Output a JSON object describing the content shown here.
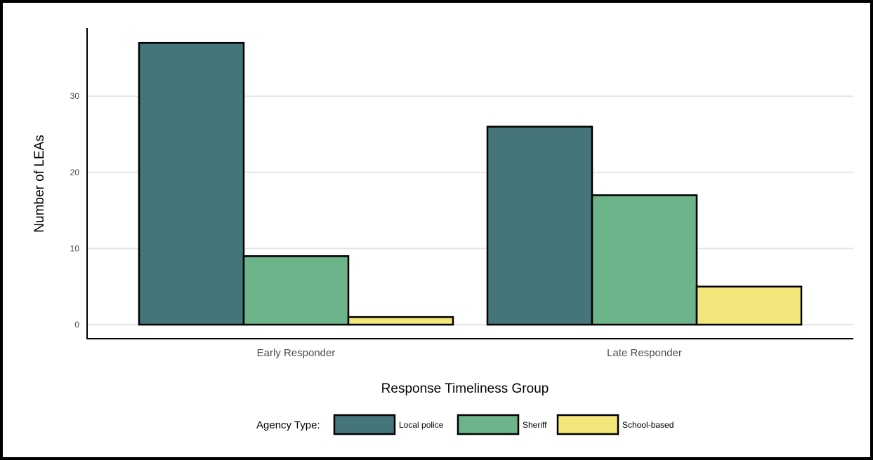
{
  "chart_data": {
    "type": "bar",
    "categories": [
      "Early Responder",
      "Late Responder"
    ],
    "series": [
      {
        "name": "Local police",
        "values": [
          37,
          26
        ],
        "color": "#44757b"
      },
      {
        "name": "Sheriff",
        "values": [
          9,
          17
        ],
        "color": "#6db48a"
      },
      {
        "name": "School-based",
        "values": [
          1,
          5
        ],
        "color": "#f2e67a"
      }
    ],
    "xlabel": "Response Timeliness Group",
    "ylabel": "Number of LEAs",
    "yticks": [
      0,
      10,
      20,
      30
    ],
    "ylim": [
      0,
      38.5
    ],
    "legend_title": "Agency Type:",
    "legend_position": "bottom",
    "grid": "horizontal"
  }
}
